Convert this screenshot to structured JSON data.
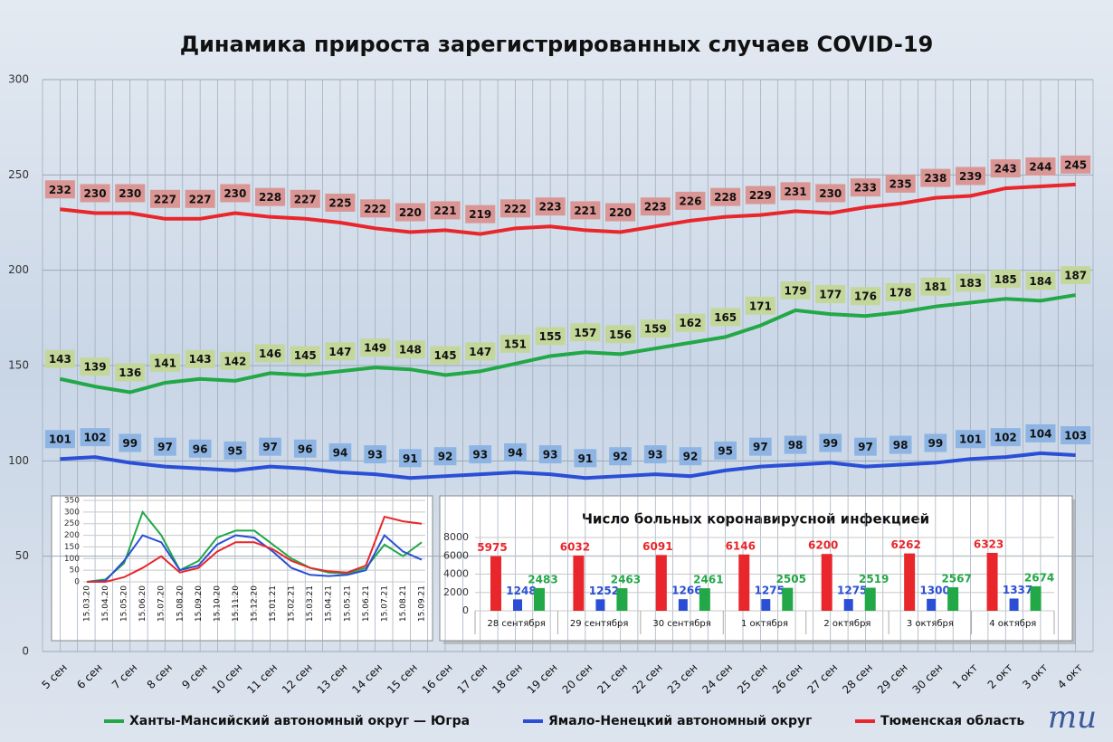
{
  "chart_data": [
    {
      "type": "line",
      "title": "Динамика прироста зарегистрированных случаев COVID-19",
      "categories": [
        "5 сен",
        "6 сен",
        "7 сен",
        "8 сен",
        "9 сен",
        "10 сен",
        "11 сен",
        "12 сен",
        "13 сен",
        "14 сен",
        "15 сен",
        "16 сен",
        "17 сен",
        "18 сен",
        "19 сен",
        "20 сен",
        "21 сен",
        "22 сен",
        "23 сен",
        "24 сен",
        "25 сен",
        "26 сен",
        "27 сен",
        "28 сен",
        "29 сен",
        "30 сен",
        "1 окт",
        "2 окт",
        "3 окт",
        "4 окт"
      ],
      "series": [
        {
          "name": "Ханты-Мансийский автономный округ — Югра",
          "color": "#22a847",
          "label_color": "#c4d79b",
          "values": [
            143,
            139,
            136,
            141,
            143,
            142,
            146,
            145,
            147,
            149,
            148,
            145,
            147,
            151,
            155,
            157,
            156,
            159,
            162,
            165,
            171,
            179,
            177,
            176,
            178,
            181,
            183,
            185,
            184,
            187
          ]
        },
        {
          "name": "Ямало-Ненецкий автономный округ",
          "color": "#2a4fd6",
          "label_color": "#8db4e2",
          "values": [
            101,
            102,
            99,
            97,
            96,
            95,
            97,
            96,
            94,
            93,
            91,
            92,
            93,
            94,
            93,
            91,
            92,
            93,
            92,
            95,
            97,
            98,
            99,
            97,
            98,
            99,
            101,
            102,
            104,
            103
          ]
        },
        {
          "name": "Тюменская область",
          "color": "#e8262b",
          "label_color": "#da9694",
          "values": [
            232,
            230,
            230,
            227,
            227,
            230,
            228,
            227,
            225,
            222,
            220,
            221,
            219,
            222,
            223,
            221,
            220,
            223,
            226,
            228,
            229,
            231,
            230,
            233,
            235,
            238,
            239,
            243,
            244,
            245
          ]
        }
      ],
      "ylim": [
        0,
        300
      ],
      "yticks": [
        0,
        50,
        100,
        150,
        200,
        250,
        300
      ],
      "grid": true,
      "legend": "bottom"
    },
    {
      "type": "line",
      "categories": [
        "15.03.20",
        "15.04.20",
        "15.05.20",
        "15.06.20",
        "15.07.20",
        "15.08.20",
        "15.09.20",
        "15.10.20",
        "15.11.20",
        "15.12.20",
        "15.01.21",
        "15.02.21",
        "15.03.21",
        "15.04.21",
        "15.05.21",
        "15.06.21",
        "15.07.21",
        "15.08.21",
        "15.09.21"
      ],
      "series": [
        {
          "color": "#22a847",
          "values": [
            0,
            10,
            80,
            300,
            200,
            50,
            90,
            190,
            220,
            220,
            160,
            100,
            60,
            40,
            35,
            60,
            160,
            110,
            170
          ]
        },
        {
          "color": "#2a4fd6",
          "values": [
            0,
            5,
            90,
            200,
            170,
            50,
            70,
            160,
            200,
            190,
            130,
            60,
            30,
            25,
            30,
            50,
            200,
            130,
            95
          ]
        },
        {
          "color": "#e8262b",
          "values": [
            0,
            0,
            20,
            60,
            110,
            40,
            60,
            130,
            170,
            170,
            140,
            90,
            60,
            45,
            40,
            70,
            280,
            260,
            250
          ]
        }
      ],
      "ylim": [
        0,
        350
      ],
      "yticks": [
        0,
        50,
        100,
        150,
        200,
        250,
        300,
        350
      ],
      "grid": true
    },
    {
      "type": "bar",
      "title": "Число больных коронавирусной инфекцией",
      "categories": [
        "28 сентября",
        "29 сентября",
        "30 сентября",
        "1 октября",
        "2 октября",
        "3 октября",
        "4 октября"
      ],
      "series": [
        {
          "color": "#e8262b",
          "values": [
            5975,
            6032,
            6091,
            6146,
            6200,
            6262,
            6323
          ]
        },
        {
          "color": "#2a4fd6",
          "values": [
            1248,
            1252,
            1266,
            1275,
            1275,
            1300,
            1337
          ]
        },
        {
          "color": "#22a847",
          "values": [
            2483,
            2463,
            2461,
            2505,
            2519,
            2567,
            2674
          ]
        }
      ],
      "ylim": [
        0,
        8000
      ],
      "yticks": [
        0,
        2000,
        4000,
        6000,
        8000
      ],
      "grid": true
    }
  ],
  "logo": "mu"
}
